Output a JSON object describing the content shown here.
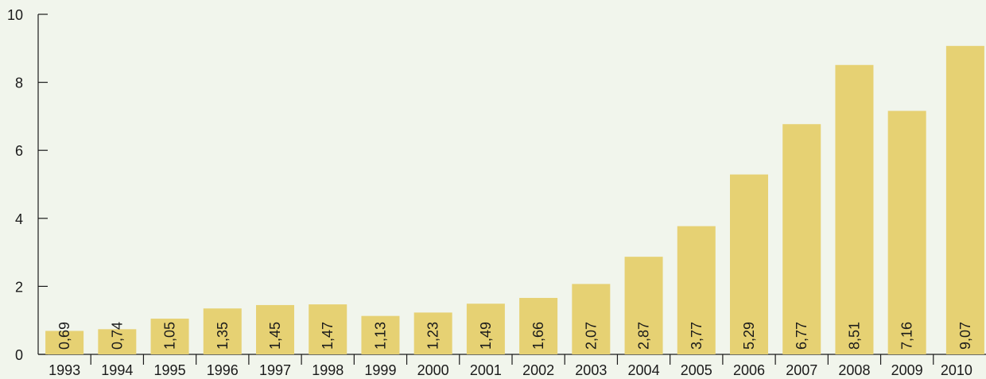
{
  "chart_data": {
    "type": "bar",
    "categories": [
      "1993",
      "1994",
      "1995",
      "1996",
      "1997",
      "1998",
      "1999",
      "2000",
      "2001",
      "2002",
      "2003",
      "2004",
      "2005",
      "2006",
      "2007",
      "2008",
      "2009",
      "2010"
    ],
    "values": [
      0.69,
      0.74,
      1.05,
      1.35,
      1.45,
      1.47,
      1.13,
      1.23,
      1.49,
      1.66,
      2.07,
      2.87,
      3.77,
      5.29,
      6.77,
      8.51,
      7.16,
      9.07
    ],
    "value_labels": [
      "0,69",
      "0,74",
      "1,05",
      "1,35",
      "1,45",
      "1,47",
      "1,13",
      "1,23",
      "1,49",
      "1,66",
      "2,07",
      "2,87",
      "3,77",
      "5,29",
      "6,77",
      "8,51",
      "7,16",
      "9,07"
    ],
    "ylim": [
      0,
      10
    ],
    "y_ticks": [
      0,
      2,
      4,
      6,
      8,
      10
    ],
    "y_tick_labels": [
      "0",
      "2",
      "4",
      "6",
      "8",
      "10"
    ],
    "title": "",
    "xlabel": "",
    "ylabel": "",
    "grid": false,
    "bar_color": "#e6d173",
    "background_color": "#f1f5ec",
    "axis_color": "#1a1a1a",
    "text_color": "#1a1a1a"
  }
}
